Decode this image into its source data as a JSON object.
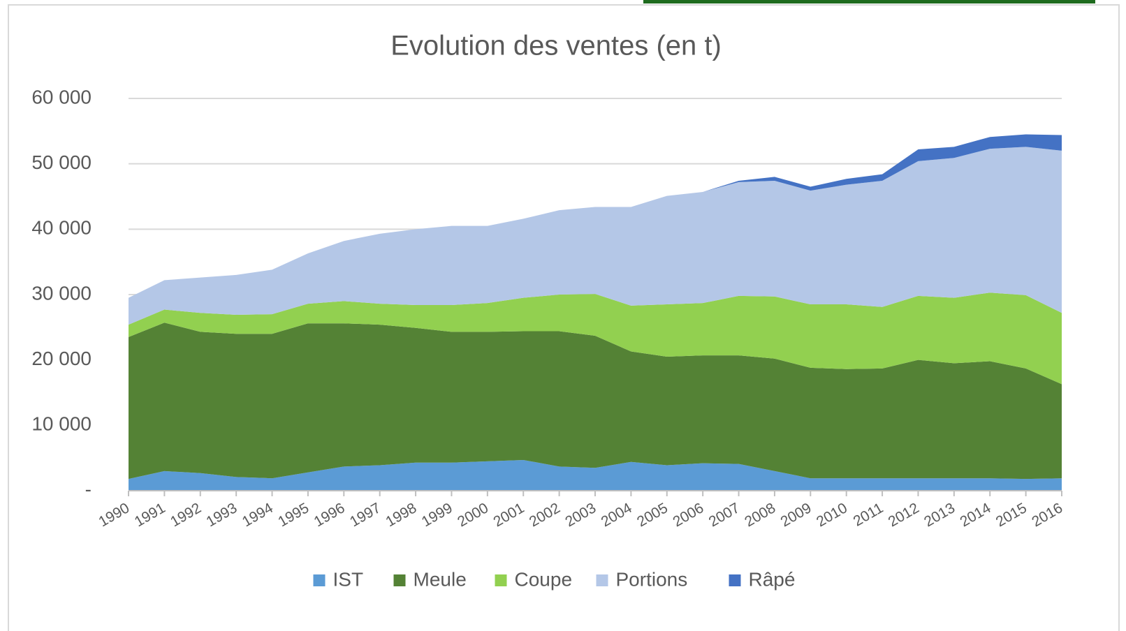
{
  "chart_data": {
    "type": "stacked_area",
    "title": "Evolution des ventes (en t)",
    "categories": [
      "1990",
      "1991",
      "1992",
      "1993",
      "1994",
      "1995",
      "1996",
      "1997",
      "1998",
      "1999",
      "2000",
      "2001",
      "2002",
      "2003",
      "2004",
      "2005",
      "2006",
      "2007",
      "2008",
      "2009",
      "2010",
      "2011",
      "2012",
      "2013",
      "2014",
      "2015",
      "2016"
    ],
    "series": [
      {
        "name": "IST",
        "color": "#5b9bd5",
        "values": [
          1800,
          3000,
          2700,
          2100,
          1900,
          2800,
          3700,
          3900,
          4300,
          4300,
          4500,
          4700,
          3700,
          3500,
          4400,
          3900,
          4200,
          4100,
          3000,
          1900,
          1900,
          1900,
          1900,
          1900,
          1900,
          1800,
          1900
        ]
      },
      {
        "name": "Meule",
        "color": "#548235",
        "values": [
          21700,
          22700,
          21600,
          21900,
          22100,
          22800,
          21900,
          21500,
          20600,
          20000,
          19800,
          19700,
          20700,
          20200,
          16900,
          16600,
          16500,
          16600,
          17200,
          16900,
          16700,
          16800,
          18100,
          17600,
          17900,
          16900,
          14400
        ]
      },
      {
        "name": "Coupe",
        "color": "#92d050",
        "values": [
          1900,
          2000,
          2900,
          2900,
          3000,
          3000,
          3400,
          3200,
          3500,
          4100,
          4400,
          5100,
          5600,
          6400,
          7000,
          8000,
          8000,
          9100,
          9500,
          9700,
          9900,
          9400,
          9800,
          10000,
          10500,
          11200,
          10900
        ]
      },
      {
        "name": "Portions",
        "color": "#b4c7e7",
        "values": [
          4100,
          4500,
          5400,
          6100,
          6800,
          7700,
          9200,
          10700,
          11600,
          12100,
          11800,
          12100,
          12900,
          13300,
          15100,
          16600,
          17000,
          17400,
          17700,
          17400,
          18300,
          19300,
          20600,
          21400,
          22000,
          22700,
          24800
        ]
      },
      {
        "name": "Râpé",
        "color": "#4472c4",
        "values": [
          0,
          0,
          0,
          0,
          0,
          0,
          0,
          0,
          0,
          0,
          0,
          0,
          0,
          0,
          0,
          0,
          0,
          200,
          600,
          600,
          900,
          1000,
          1800,
          1700,
          1800,
          1900,
          2400
        ]
      }
    ],
    "ylim": [
      0,
      60000
    ],
    "yticks": [
      {
        "value": 0,
        "label": "-"
      },
      {
        "value": 10000,
        "label": "10 000"
      },
      {
        "value": 20000,
        "label": "20 000"
      },
      {
        "value": 30000,
        "label": "30 000"
      },
      {
        "value": 40000,
        "label": "40 000"
      },
      {
        "value": 50000,
        "label": "50 000"
      },
      {
        "value": 60000,
        "label": "60 000"
      }
    ],
    "grid": true,
    "legend": "bottom"
  }
}
